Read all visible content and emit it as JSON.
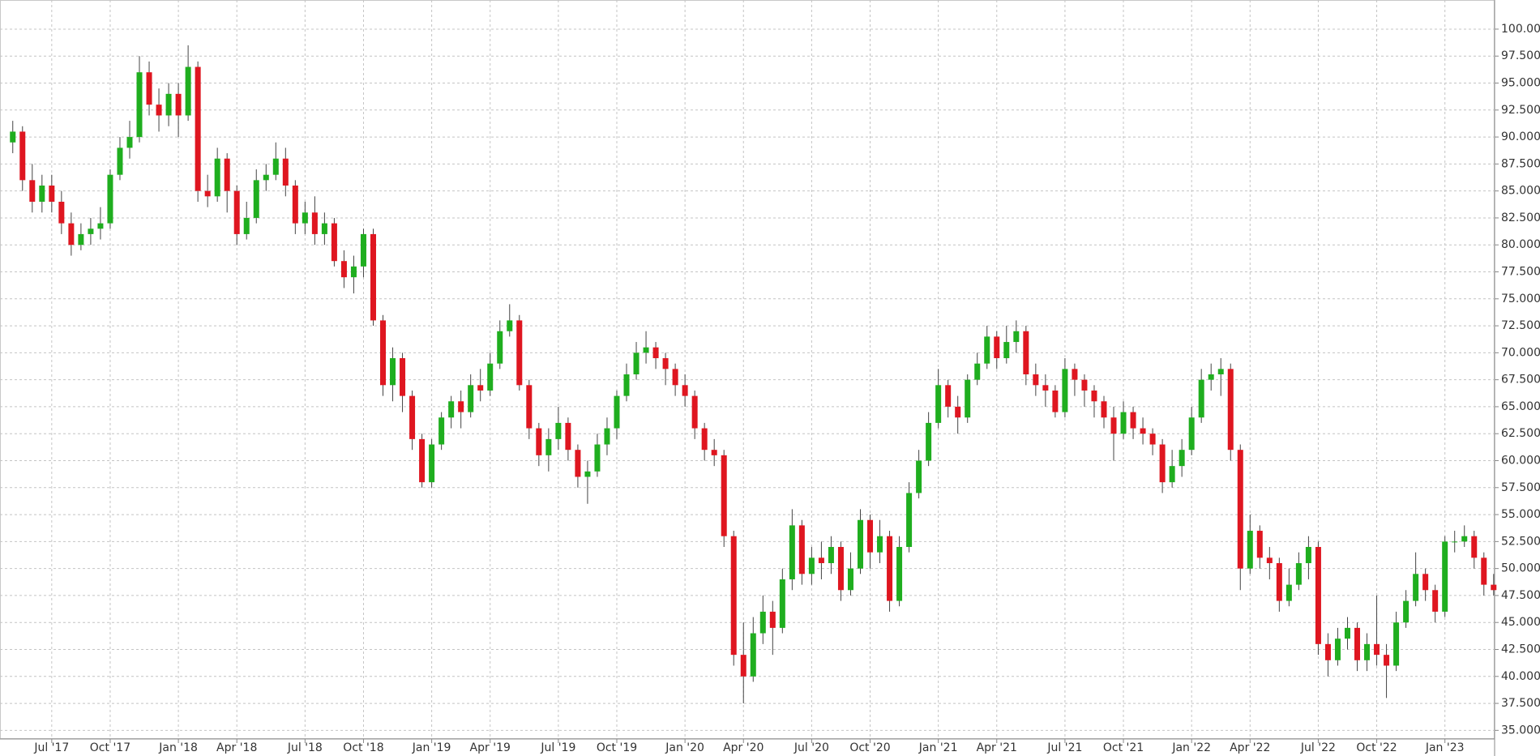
{
  "chart_data": {
    "type": "candlestick",
    "categories": [
      null,
      null,
      null,
      null,
      "Jul '17",
      null,
      null,
      null,
      null,
      null,
      "Oct '17",
      null,
      null,
      null,
      null,
      null,
      null,
      "Jan '18",
      null,
      null,
      null,
      null,
      null,
      "Apr '18",
      null,
      null,
      null,
      null,
      null,
      null,
      "Jul '18",
      null,
      null,
      null,
      null,
      null,
      "Oct '18",
      null,
      null,
      null,
      null,
      null,
      null,
      "Jan '19",
      null,
      null,
      null,
      null,
      null,
      "Apr '19",
      null,
      null,
      null,
      null,
      null,
      null,
      "Jul '19",
      null,
      null,
      null,
      null,
      null,
      "Oct '19",
      null,
      null,
      null,
      null,
      null,
      null,
      "Jan '20",
      null,
      null,
      null,
      null,
      null,
      "Apr '20",
      null,
      null,
      null,
      null,
      null,
      null,
      "Jul '20",
      null,
      null,
      null,
      null,
      null,
      "Oct '20",
      null,
      null,
      null,
      null,
      null,
      null,
      "Jan '21",
      null,
      null,
      null,
      null,
      null,
      "Apr '21",
      null,
      null,
      null,
      null,
      null,
      null,
      "Jul '21",
      null,
      null,
      null,
      null,
      null,
      "Oct '21",
      null,
      null,
      null,
      null,
      null,
      null,
      "Jan '22",
      null,
      null,
      null,
      null,
      null,
      "Apr '22",
      null,
      null,
      null,
      null,
      null,
      null,
      "Jul '22",
      null,
      null,
      null,
      null,
      null,
      "Oct '22",
      null,
      null,
      null,
      null,
      null,
      null,
      "Jan '23",
      null,
      null,
      null,
      null,
      null
    ],
    "open": [
      89.5,
      90.5,
      86,
      84,
      85.5,
      84,
      82,
      80,
      81,
      81.5,
      82,
      86.5,
      89,
      90,
      96,
      93,
      92,
      94,
      92,
      96.5,
      85,
      84.5,
      88,
      85,
      81,
      82.5,
      86,
      86.5,
      88,
      85.5,
      82,
      83,
      81,
      82,
      78.5,
      77,
      78,
      81,
      73,
      67,
      69.5,
      66,
      62,
      58,
      61.5,
      64,
      65.5,
      64.5,
      67,
      66.5,
      69,
      72,
      73,
      67,
      63,
      60.5,
      62,
      63.5,
      61,
      58.5,
      59,
      61.5,
      63,
      66,
      68,
      70,
      70.5,
      69.5,
      68.5,
      67,
      66,
      63,
      61,
      60.5,
      53,
      42,
      40,
      44,
      46,
      44.5,
      49,
      54,
      49.5,
      51,
      50.5,
      52,
      48,
      50,
      54.5,
      51.5,
      53,
      47,
      52,
      57,
      60,
      63.5,
      67,
      65,
      64,
      67.5,
      69,
      71.5,
      69.5,
      71,
      72,
      68,
      67,
      66.5,
      64.5,
      68.5,
      67.5,
      66.5,
      65.5,
      64,
      62.5,
      64.5,
      63,
      62.5,
      61.5,
      58,
      59.5,
      61,
      64,
      67.5,
      68,
      68.5,
      61,
      50,
      53.5,
      51,
      50.5,
      47,
      48.5,
      50.5,
      52,
      43,
      41.5,
      43.5,
      44.5,
      41.5,
      43,
      42,
      41,
      45,
      47,
      49.5,
      48,
      46,
      52.5,
      52.5,
      53,
      51,
      48.5
    ],
    "high": [
      91.5,
      91,
      87.5,
      86.5,
      86.5,
      85,
      83,
      82,
      82.5,
      83.5,
      87,
      90,
      91.5,
      97.5,
      97,
      94.5,
      95,
      95,
      98.5,
      97,
      86.5,
      89,
      88.5,
      85.5,
      84,
      87,
      87.5,
      89.5,
      89,
      86,
      84,
      84.5,
      83,
      82.5,
      79.5,
      79,
      81.5,
      81.5,
      73.5,
      70.5,
      70,
      66.5,
      62.5,
      62,
      64.5,
      66,
      66.5,
      68,
      68.5,
      70,
      73,
      74.5,
      73.5,
      67.5,
      63.5,
      63,
      65,
      64,
      61.5,
      60,
      62.5,
      64,
      66.5,
      69,
      71,
      72,
      71,
      70,
      69,
      68,
      66.5,
      63.5,
      62,
      61,
      53.5,
      45,
      45.5,
      47.5,
      47,
      50,
      55.5,
      54.5,
      52,
      52.5,
      53,
      52.5,
      51.5,
      55.5,
      55,
      54.5,
      53.5,
      53,
      58,
      61,
      64.5,
      68.5,
      67.5,
      66,
      68,
      70,
      72.5,
      72,
      72.5,
      73,
      72.5,
      69,
      68,
      67,
      69.5,
      69,
      68,
      67,
      66,
      65,
      65.5,
      65,
      64,
      63,
      62,
      61,
      62,
      65,
      68.5,
      69,
      69.5,
      69,
      61.5,
      55,
      54,
      52,
      51,
      50,
      51.5,
      53,
      52.5,
      44,
      44.5,
      45.5,
      45,
      44,
      47.5,
      43,
      46,
      48,
      51.5,
      50,
      48.5,
      53,
      53.5,
      54,
      53.5,
      51.5,
      49.5
    ],
    "low": [
      88.5,
      85,
      83,
      83,
      83,
      81,
      79,
      79.5,
      80,
      80.5,
      81.5,
      86,
      88,
      89.5,
      92,
      90.5,
      91,
      90,
      91.5,
      84,
      83.5,
      84,
      83,
      80,
      80.5,
      82,
      85,
      86,
      84.5,
      81,
      81,
      80,
      80,
      78,
      76,
      75.5,
      77,
      72.5,
      66,
      65.5,
      64.5,
      61,
      57.5,
      57.5,
      61,
      63,
      63,
      64,
      65.5,
      66,
      68.5,
      71.5,
      66.5,
      62,
      59.5,
      59,
      61,
      60,
      57.5,
      56,
      58.5,
      60.5,
      62,
      65.5,
      67.5,
      69,
      68.5,
      67,
      66,
      65,
      62,
      60,
      59.5,
      52,
      41,
      37.5,
      39.5,
      43,
      42,
      44,
      48,
      48.5,
      48.5,
      49,
      49.5,
      47,
      47.5,
      49.5,
      50,
      50.5,
      46,
      46.5,
      51.5,
      56.5,
      59.5,
      63,
      64,
      62.5,
      63.5,
      67,
      68.5,
      68.5,
      69,
      70,
      67,
      66,
      65,
      64,
      64,
      66,
      65,
      64,
      63,
      60,
      62,
      62,
      61.5,
      60.5,
      57,
      57.5,
      58.5,
      60.5,
      63.5,
      66.5,
      66,
      60,
      48,
      49.5,
      50,
      49,
      46,
      46.5,
      48,
      49,
      42,
      40,
      41,
      42.5,
      40.5,
      40.5,
      41,
      38,
      40.5,
      44.5,
      46.5,
      47,
      45,
      45.5,
      51.5,
      52,
      50,
      47.5,
      47.5
    ],
    "close": [
      90.5,
      86,
      84,
      85.5,
      84,
      82,
      80,
      81,
      81.5,
      82,
      86.5,
      89,
      90,
      96,
      93,
      92,
      94,
      92,
      96.5,
      85,
      84.5,
      88,
      85,
      81,
      82.5,
      86,
      86.5,
      88,
      85.5,
      82,
      83,
      81,
      82,
      78.5,
      77,
      78,
      81,
      73,
      67,
      69.5,
      66,
      62,
      58,
      61.5,
      64,
      65.5,
      64.5,
      67,
      66.5,
      69,
      72,
      73,
      67,
      63,
      60.5,
      62,
      63.5,
      61,
      58.5,
      59,
      61.5,
      63,
      66,
      68,
      70,
      70.5,
      69.5,
      68.5,
      67,
      66,
      63,
      61,
      60.5,
      53,
      42,
      40,
      44,
      46,
      44.5,
      49,
      54,
      49.5,
      51,
      50.5,
      52,
      48,
      50,
      54.5,
      51.5,
      53,
      47,
      52,
      57,
      60,
      63.5,
      67,
      65,
      64,
      67.5,
      69,
      71.5,
      69.5,
      71,
      72,
      68,
      67,
      66.5,
      64.5,
      68.5,
      67.5,
      66.5,
      65.5,
      64,
      62.5,
      64.5,
      63,
      62.5,
      61.5,
      58,
      59.5,
      61,
      64,
      67.5,
      68,
      68.5,
      61,
      50,
      53.5,
      51,
      50.5,
      47,
      48.5,
      50.5,
      52,
      43,
      41.5,
      43.5,
      44.5,
      41.5,
      43,
      42,
      41,
      45,
      47,
      49.5,
      48,
      46,
      52.5,
      52.5,
      53,
      51,
      48.5,
      48
    ],
    "up_color": "#1fae1f",
    "down_color": "#df1620",
    "ylim": [
      34.2,
      102.7
    ],
    "yticks": [
      {
        "value": 35,
        "label": "35.000"
      },
      {
        "value": 37.5,
        "label": "37.500"
      },
      {
        "value": 40,
        "label": "40.000"
      },
      {
        "value": 42.5,
        "label": "42.500"
      },
      {
        "value": 45,
        "label": "45.000"
      },
      {
        "value": 47.5,
        "label": "47.500"
      },
      {
        "value": 50,
        "label": "50.000"
      },
      {
        "value": 52.5,
        "label": "52.500"
      },
      {
        "value": 55,
        "label": "55.000"
      },
      {
        "value": 57.5,
        "label": "57.500"
      },
      {
        "value": 60,
        "label": "60.000"
      },
      {
        "value": 62.5,
        "label": "62.500"
      },
      {
        "value": 65,
        "label": "65.000"
      },
      {
        "value": 67.5,
        "label": "67.500"
      },
      {
        "value": 70,
        "label": "70.000"
      },
      {
        "value": 72.5,
        "label": "72.500"
      },
      {
        "value": 75,
        "label": "75.000"
      },
      {
        "value": 77.5,
        "label": "77.500"
      },
      {
        "value": 80,
        "label": "80.000"
      },
      {
        "value": 82.5,
        "label": "82.500"
      },
      {
        "value": 85,
        "label": "85.000"
      },
      {
        "value": 87.5,
        "label": "87.500"
      },
      {
        "value": 90,
        "label": "90.000"
      },
      {
        "value": 92.5,
        "label": "92.500"
      },
      {
        "value": 95,
        "label": "95.000"
      },
      {
        "value": 97.5,
        "label": "97.500"
      },
      {
        "value": 100,
        "label": "100.00"
      }
    ],
    "grid": true
  }
}
